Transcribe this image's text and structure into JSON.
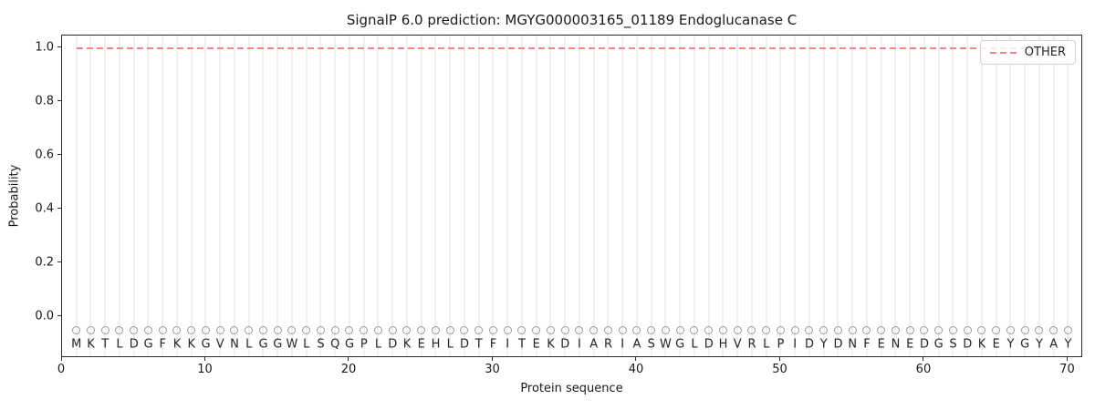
{
  "chart_data": {
    "type": "line",
    "title": "SignalP 6.0 prediction: MGYG000003165_01189 Endoglucanase C",
    "xlabel": "Protein sequence",
    "ylabel": "Probability",
    "xlim": [
      0,
      71
    ],
    "ylim": [
      -0.15,
      1.05
    ],
    "x_ticks": [
      0,
      10,
      20,
      30,
      40,
      50,
      60,
      70
    ],
    "y_ticks": [
      "0.0",
      "0.2",
      "0.4",
      "0.6",
      "0.8",
      "1.0"
    ],
    "grid": "vertical gridline at each residue position, no horizontal gridlines",
    "legend": {
      "position": "upper right",
      "entries": [
        {
          "label": "OTHER",
          "linestyle": "dashed",
          "color": "#ee8888"
        }
      ]
    },
    "series": [
      {
        "name": "OTHER",
        "linestyle": "dashed",
        "color": "#ee8888",
        "y_constant": 1.0,
        "x_start": 1,
        "x_end": 70
      }
    ],
    "sequence": {
      "residues": "MKTLDGFKKGVNLGGWLSQGPLDKEHLDTFITEKDIARIASWGLDHVRLPIDYDNFENEDGSDKEYGYAY",
      "length": 70,
      "marker": "open circle above each residue letter",
      "marker_y": -0.05,
      "letter_y": -0.1
    }
  },
  "colors": {
    "other_line": "#ee8888",
    "gridline": "#f0f0f0",
    "marker_stroke": "#9a9a9a",
    "letter": "#262626",
    "axis": "#2b2b2b",
    "legend_border": "#d2d2d2",
    "background": "#ffffff"
  }
}
